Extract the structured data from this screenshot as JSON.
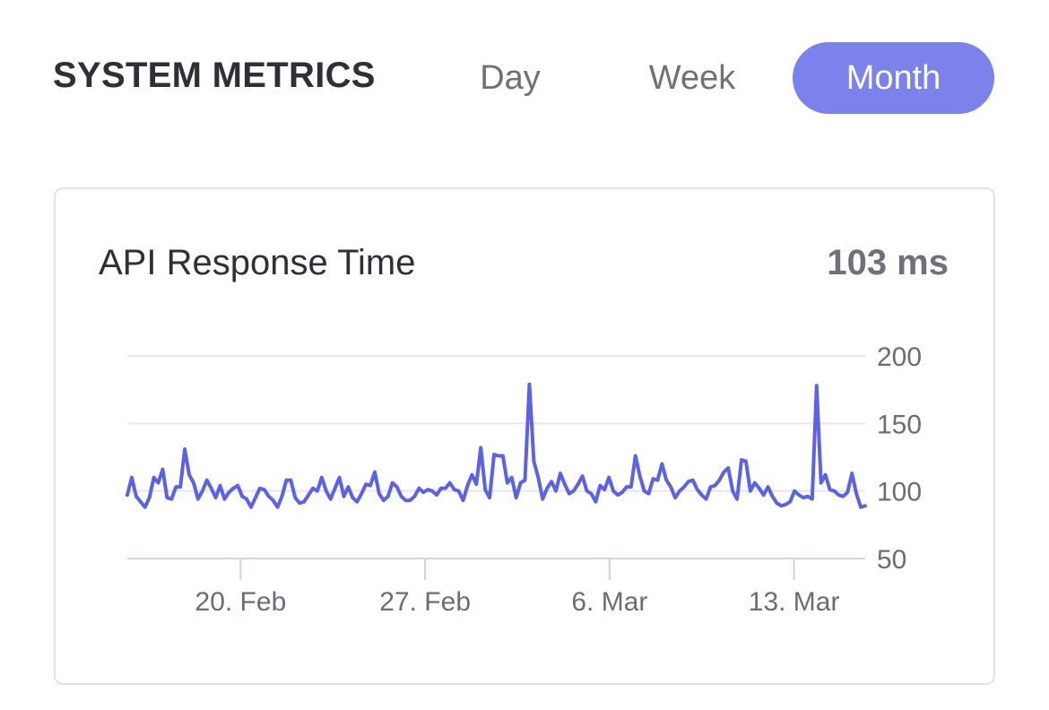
{
  "header": {
    "title": "SYSTEM METRICS",
    "ranges": [
      "Day",
      "Week",
      "Month"
    ],
    "selected_range": "Month"
  },
  "colors": {
    "accent": "#7b82ec",
    "line": "#5b62e8",
    "grid": "#e6e7ea",
    "text_dark": "#2f3037",
    "text_muted": "#6f7079",
    "card_border": "#e1e2e6"
  },
  "card": {
    "title": "API Response Time",
    "value": "103 ms"
  },
  "chart_data": {
    "type": "line",
    "title": "API Response Time",
    "xlabel": "",
    "ylabel": "",
    "ylim": [
      50,
      200
    ],
    "yticks": [
      50,
      100,
      150,
      200
    ],
    "grid": true,
    "x_start_day": 0,
    "x_end_day": 28,
    "xticks": [
      {
        "label": "20. Feb",
        "day": 4.3
      },
      {
        "label": "27. Feb",
        "day": 11.3
      },
      {
        "label": "6. Mar",
        "day": 18.3
      },
      {
        "label": "13. Mar",
        "day": 25.3
      }
    ],
    "series": [
      {
        "name": "API Response Time",
        "values": [
          97,
          110,
          96,
          92,
          88,
          95,
          110,
          106,
          116,
          95,
          94,
          103,
          103,
          131,
          112,
          106,
          94,
          100,
          108,
          102,
          95,
          104,
          94,
          99,
          102,
          104,
          96,
          94,
          88,
          95,
          102,
          101,
          96,
          93,
          88,
          96,
          108,
          108,
          95,
          91,
          92,
          97,
          102,
          100,
          110,
          100,
          94,
          102,
          110,
          96,
          103,
          95,
          92,
          98,
          105,
          104,
          114,
          98,
          93,
          96,
          106,
          103,
          96,
          93,
          93,
          96,
          102,
          99,
          101,
          100,
          97,
          102,
          102,
          106,
          101,
          100,
          93,
          104,
          112,
          105,
          132,
          101,
          95,
          127,
          126,
          126,
          106,
          110,
          95,
          106,
          108,
          179,
          122,
          110,
          94,
          102,
          107,
          100,
          113,
          105,
          98,
          100,
          105,
          111,
          100,
          98,
          92,
          104,
          101,
          110,
          100,
          97,
          99,
          103,
          103,
          126,
          111,
          100,
          98,
          109,
          108,
          120,
          108,
          103,
          95,
          100,
          103,
          107,
          108,
          101,
          97,
          94,
          103,
          104,
          108,
          114,
          117,
          100,
          94,
          123,
          122,
          100,
          106,
          102,
          97,
          103,
          96,
          91,
          89,
          90,
          92,
          100,
          97,
          95,
          96,
          94,
          178,
          106,
          112,
          101,
          100,
          97,
          96,
          99,
          113,
          98,
          88,
          89
        ]
      }
    ]
  }
}
